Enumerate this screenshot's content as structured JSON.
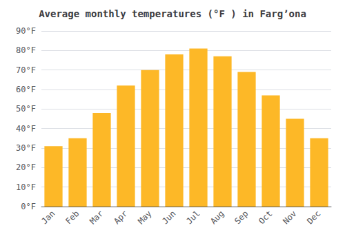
{
  "chart_data": {
    "type": "bar",
    "title": "Average monthly temperatures (°F ) in Fargʼona",
    "categories": [
      "Jan",
      "Feb",
      "Mar",
      "Apr",
      "May",
      "Jun",
      "Jul",
      "Aug",
      "Sep",
      "Oct",
      "Nov",
      "Dec"
    ],
    "values": [
      31,
      35,
      48,
      62,
      70,
      78,
      81,
      77,
      69,
      57,
      45,
      35
    ],
    "color": "#FDB827",
    "ylim": [
      0,
      90
    ],
    "yticks": [
      {
        "value": 0,
        "label": "0°F"
      },
      {
        "value": 10,
        "label": "10°F"
      },
      {
        "value": 20,
        "label": "20°F"
      },
      {
        "value": 30,
        "label": "30°F"
      },
      {
        "value": 40,
        "label": "40°F"
      },
      {
        "value": 50,
        "label": "50°F"
      },
      {
        "value": 60,
        "label": "60°F"
      },
      {
        "value": 70,
        "label": "70°F"
      },
      {
        "value": 80,
        "label": "80°F"
      },
      {
        "value": 90,
        "label": "90°F"
      }
    ],
    "grid": true
  }
}
